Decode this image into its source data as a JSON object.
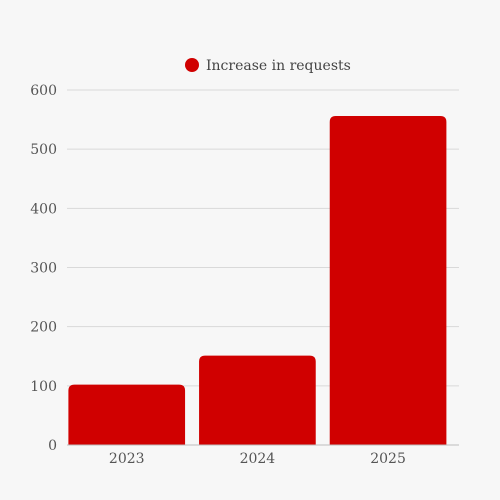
{
  "colors": {
    "background": "#f7f7f7",
    "bar": "#d00000",
    "grid": "#d9d9d9",
    "axis": "#bdbdbd",
    "text": "#555555"
  },
  "chart_data": {
    "type": "bar",
    "title": "",
    "xlabel": "",
    "ylabel": "",
    "categories": [
      "2023",
      "2024",
      "2025"
    ],
    "series": [
      {
        "name": "Increase in requests",
        "values": [
          102,
          151,
          556
        ]
      }
    ],
    "ylim": [
      0,
      600
    ],
    "yticks": [
      0,
      100,
      200,
      300,
      400,
      500,
      600
    ],
    "grid": true,
    "legend_position": "top-center"
  }
}
